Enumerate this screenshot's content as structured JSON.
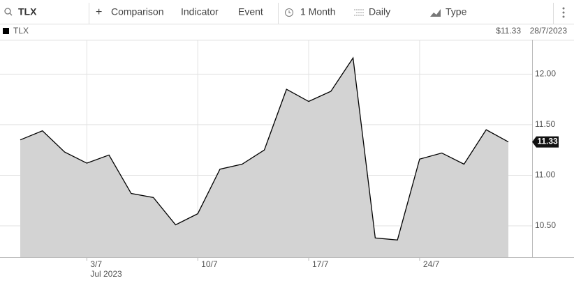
{
  "toolbar": {
    "search": "TLX",
    "comparison": "Comparison",
    "indicator": "Indicator",
    "event": "Event",
    "period": "1 Month",
    "interval": "Daily",
    "type": "Type"
  },
  "chart_data": {
    "type": "area",
    "series_name": "TLX",
    "price": "$11.33",
    "date": "28/7/2023",
    "categories": [
      null,
      null,
      null,
      "3/7",
      null,
      null,
      null,
      null,
      "10/7",
      null,
      null,
      null,
      null,
      "17/7",
      null,
      null,
      null,
      null,
      "24/7",
      null,
      null,
      null,
      null
    ],
    "x_sublabel": "Jul 2023",
    "values": [
      11.35,
      11.44,
      11.23,
      11.12,
      11.2,
      10.82,
      10.78,
      10.51,
      10.62,
      11.06,
      11.11,
      11.25,
      11.85,
      11.73,
      11.83,
      12.16,
      10.38,
      10.36,
      11.16,
      11.22,
      11.11,
      11.45,
      11.33
    ],
    "color": "#000000",
    "fill": "#d3d3d3",
    "ylim": [
      10.19,
      12.34
    ],
    "yticks": [
      {
        "value": 10.5,
        "label": "10.50"
      },
      {
        "value": 11,
        "label": "11.00"
      },
      {
        "value": 11.5,
        "label": "11.50"
      },
      {
        "value": 12,
        "label": "12.00"
      }
    ],
    "grid": true
  }
}
